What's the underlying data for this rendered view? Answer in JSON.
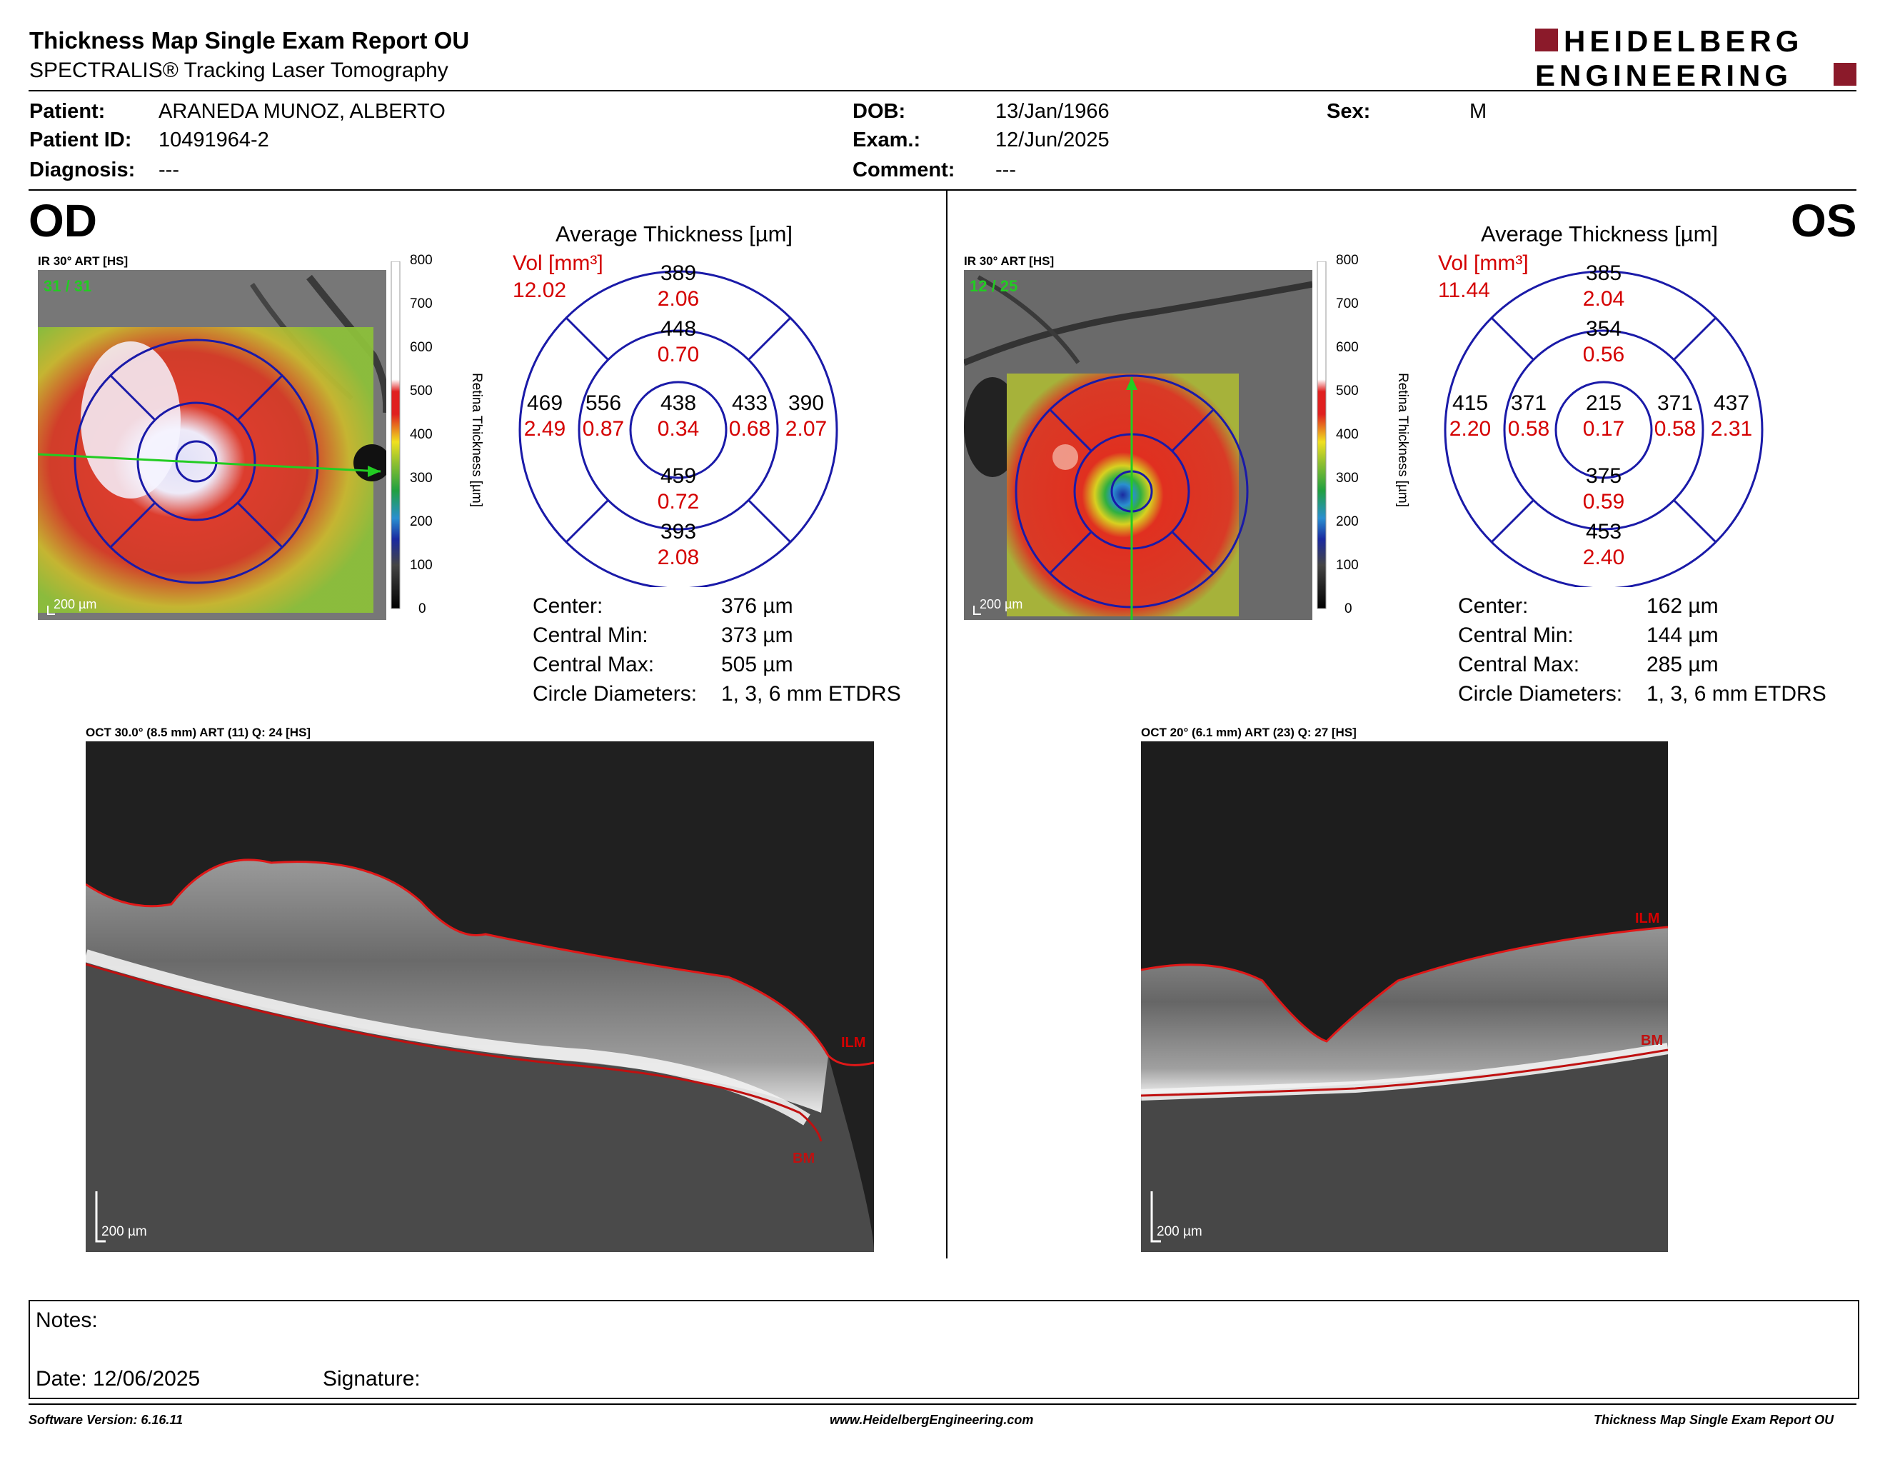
{
  "header": {
    "title": "Thickness Map Single Exam Report OU",
    "subtitle": "SPECTRALIS® Tracking Laser Tomography",
    "logo_line1": "HEIDELBERG",
    "logo_line2": "ENGINEERING",
    "logo_color": "#8b1a2a"
  },
  "patient": {
    "name_label": "Patient:",
    "name": "ARANEDA MUNOZ, ALBERTO",
    "id_label": "Patient ID:",
    "id": "10491964-2",
    "diagnosis_label": "Diagnosis:",
    "diagnosis": "---",
    "dob_label": "DOB:",
    "dob": "13/Jan/1966",
    "exam_label": "Exam.:",
    "exam": "12/Jun/2025",
    "comment_label": "Comment:",
    "comment": "---",
    "sex_label": "Sex:",
    "sex": "M"
  },
  "od": {
    "eye": "OD",
    "ir_label": "IR 30° ART [HS]",
    "ir_counter": "31 / 31",
    "scale": "200 µm",
    "map_title": "Average Thickness [µm]",
    "vol_label": "Vol [mm³]",
    "vol_total": "12.02",
    "sectors": {
      "outer_sup": {
        "t": "389",
        "v": "2.06"
      },
      "inner_sup": {
        "t": "448",
        "v": "0.70"
      },
      "center": {
        "t": "438",
        "v": "0.34"
      },
      "inner_inf": {
        "t": "459",
        "v": "0.72"
      },
      "outer_inf": {
        "t": "393",
        "v": "2.08"
      },
      "outer_left": {
        "t": "469",
        "v": "2.49"
      },
      "inner_left": {
        "t": "556",
        "v": "0.87"
      },
      "inner_right": {
        "t": "433",
        "v": "0.68"
      },
      "outer_right": {
        "t": "390",
        "v": "2.07"
      }
    },
    "center_label": "Center:",
    "center": "376 µm",
    "min_label": "Central Min:",
    "min": "373 µm",
    "max_label": "Central Max:",
    "max": "505 µm",
    "diam_label": "Circle Diameters:",
    "diam": "1, 3, 6 mm ETDRS",
    "oct_label": "OCT 30.0° (8.5 mm) ART (11) Q: 24 [HS]",
    "ilm": "ILM",
    "bm": "BM"
  },
  "os": {
    "eye": "OS",
    "ir_label": "IR 30° ART [HS]",
    "ir_counter": "12 / 25",
    "scale": "200 µm",
    "map_title": "Average Thickness [µm]",
    "vol_label": "Vol [mm³]",
    "vol_total": "11.44",
    "sectors": {
      "outer_sup": {
        "t": "385",
        "v": "2.04"
      },
      "inner_sup": {
        "t": "354",
        "v": "0.56"
      },
      "center": {
        "t": "215",
        "v": "0.17"
      },
      "inner_inf": {
        "t": "375",
        "v": "0.59"
      },
      "outer_inf": {
        "t": "453",
        "v": "2.40"
      },
      "outer_left": {
        "t": "415",
        "v": "2.20"
      },
      "inner_left": {
        "t": "371",
        "v": "0.58"
      },
      "inner_right": {
        "t": "371",
        "v": "0.58"
      },
      "outer_right": {
        "t": "437",
        "v": "2.31"
      }
    },
    "center_label": "Center:",
    "center": "162 µm",
    "min_label": "Central Min:",
    "min": "144 µm",
    "max_label": "Central Max:",
    "max": "285 µm",
    "diam_label": "Circle Diameters:",
    "diam": "1, 3, 6 mm ETDRS",
    "oct_label": "OCT 20° (6.1 mm) ART (23) Q: 27 [HS]",
    "ilm": "ILM",
    "bm": "BM"
  },
  "colorbar": {
    "ticks": [
      "800",
      "700",
      "600",
      "500",
      "400",
      "300",
      "200",
      "100",
      "0"
    ],
    "axis_label": "Retina Thickness [µm]"
  },
  "notes": {
    "notes_label": "Notes:",
    "date_label": "Date: 12/06/2025",
    "signature_label": "Signature:"
  },
  "footer": {
    "left": "Software Version: 6.16.11",
    "center": "www.HeidelbergEngineering.com",
    "right": "Thickness Map Single Exam Report OU"
  },
  "colors": {
    "red": "#d40000",
    "grid_blue": "#1a1aa8",
    "scan_green": "#22cc22"
  }
}
